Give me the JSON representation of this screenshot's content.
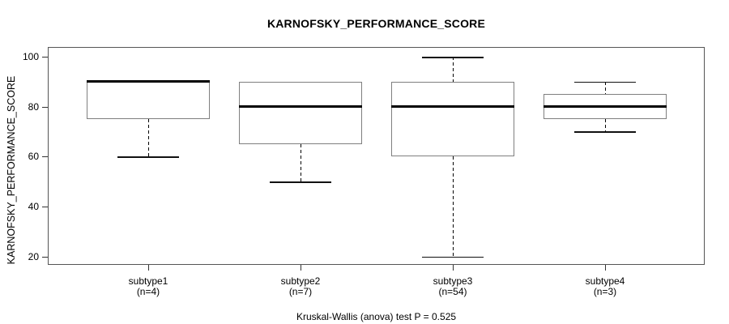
{
  "title": "KARNOFSKY_PERFORMANCE_SCORE",
  "y_axis": {
    "label": "KARNOFSKY_PERFORMANCE_SCORE",
    "ticks": [
      20,
      40,
      60,
      80,
      100
    ]
  },
  "footer": "Kruskal-Wallis (anova) test P = 0.525",
  "colors": {
    "frame": "#555555",
    "box_border": "#7f7f7f",
    "median": "#000000",
    "whisker": "#000000",
    "text": "#000000",
    "background": "#ffffff"
  },
  "chart_data": {
    "type": "boxplot",
    "title": "KARNOFSKY_PERFORMANCE_SCORE",
    "xlabel": "",
    "ylabel": "KARNOFSKY_PERFORMANCE_SCORE",
    "y_ticks": [
      20,
      40,
      60,
      80,
      100
    ],
    "ylim": [
      15,
      103
    ],
    "grid": false,
    "legend": false,
    "categories": [
      "subtype1",
      "subtype2",
      "subtype3",
      "subtype4"
    ],
    "category_sublabels": [
      "(n=4)",
      "(n=7)",
      "(n=54)",
      "(n=3)"
    ],
    "counts": [
      4,
      7,
      54,
      3
    ],
    "boxes": [
      {
        "group": "subtype1",
        "n": 4,
        "whisker_low": 60,
        "q1": 75,
        "median": 90,
        "q3": 90,
        "whisker_high": 90
      },
      {
        "group": "subtype2",
        "n": 7,
        "whisker_low": 50,
        "q1": 65,
        "median": 80,
        "q3": 90,
        "whisker_high": 90
      },
      {
        "group": "subtype3",
        "n": 54,
        "whisker_low": 20,
        "q1": 60,
        "median": 80,
        "q3": 90,
        "whisker_high": 100
      },
      {
        "group": "subtype4",
        "n": 3,
        "whisker_low": 70,
        "q1": 75,
        "median": 80,
        "q3": 85,
        "whisker_high": 90
      }
    ],
    "annotation": "Kruskal-Wallis (anova) test P = 0.525"
  }
}
